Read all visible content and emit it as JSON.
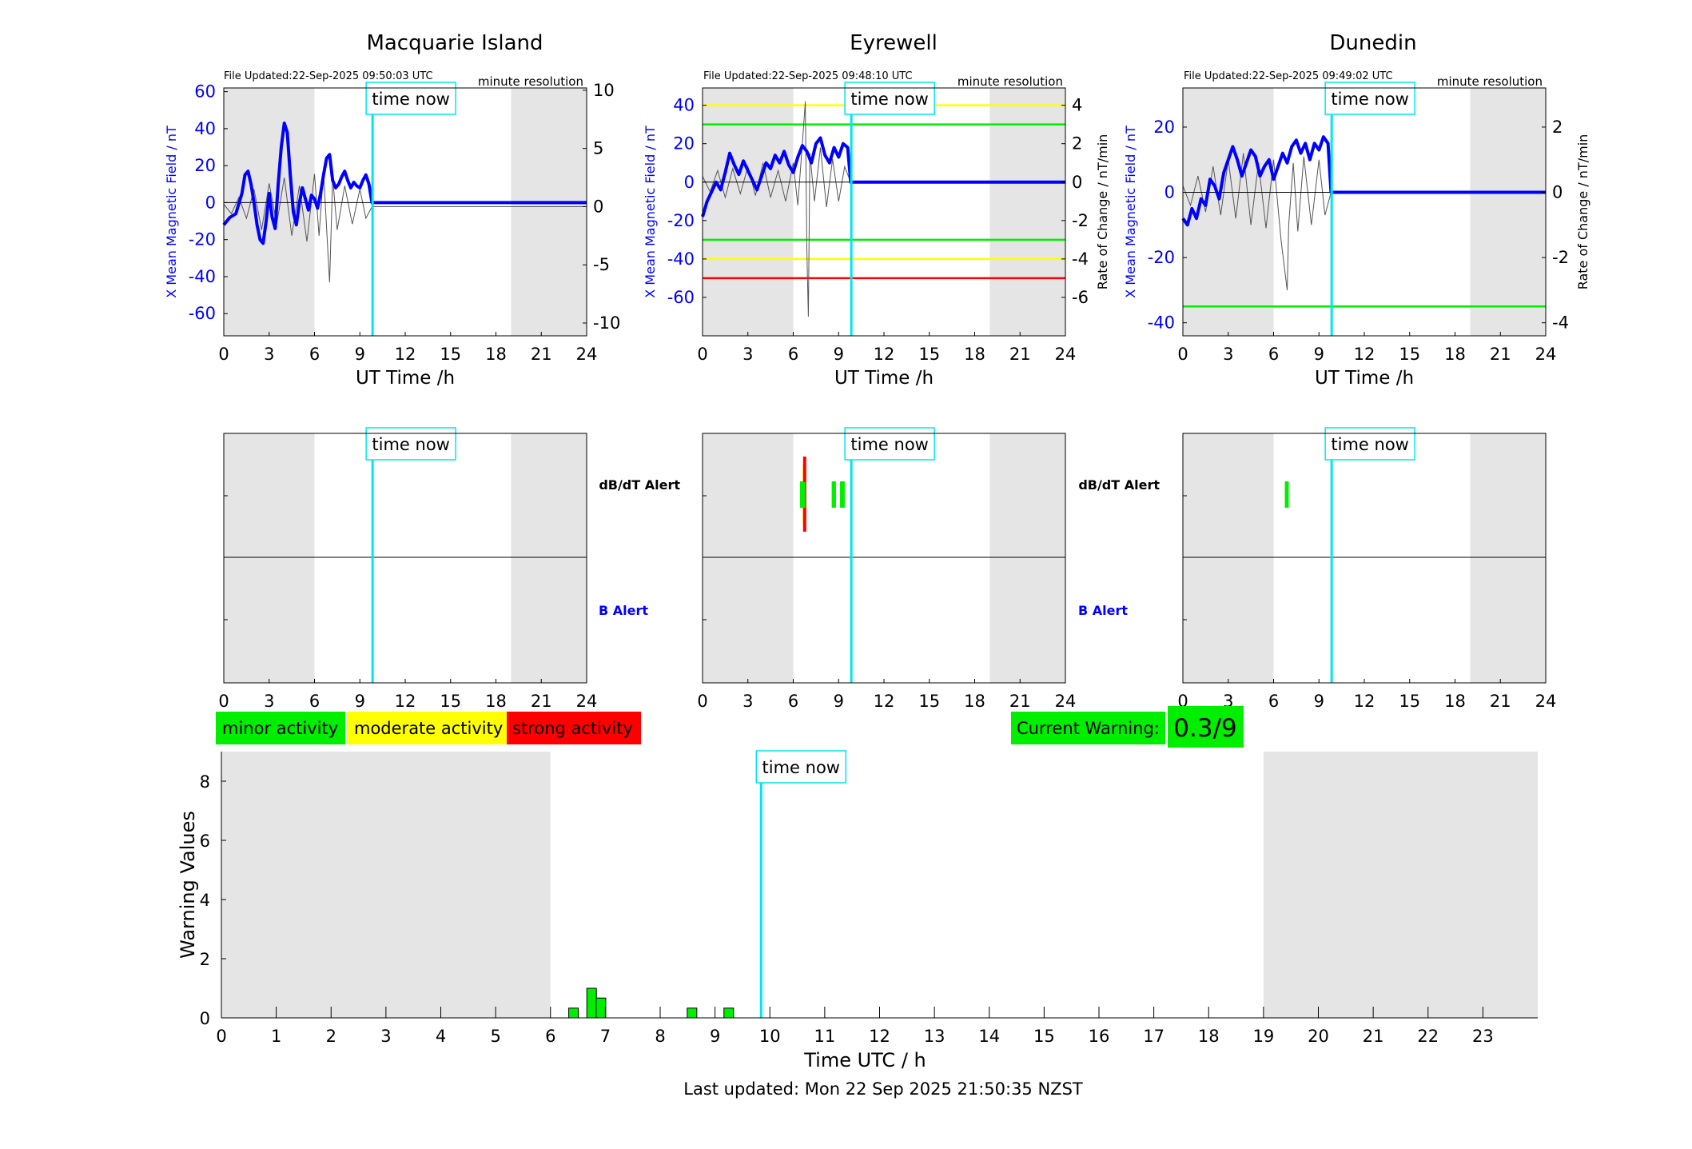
{
  "colors": {
    "field_line": "#0000ff",
    "rate_line": "#555555",
    "time_now": "#00e5ee",
    "night_shade": "#e5e5e5",
    "minor": "#00ee00",
    "moderate": "#ffff00",
    "strong": "#ff0000",
    "b_alert_label": "#0000ff"
  },
  "common": {
    "time_now_label": "time now",
    "time_now_hour": 9.84,
    "night_shade_hours": [
      [
        0,
        6
      ],
      [
        19,
        24
      ]
    ],
    "x_label_top": "UT Time /h",
    "x_ticks": [
      0,
      3,
      6,
      9,
      12,
      15,
      18,
      21,
      24
    ],
    "resolution_label": "minute resolution",
    "left_ylabel": "X Mean Magnetic Field / nT",
    "right_ylabel": "Rate of Change / nT/min",
    "alert_dbdt_label": "dB/dT Alert",
    "alert_b_label": "B Alert"
  },
  "stations": [
    {
      "name": "Macquarie Island",
      "file_updated": "File Updated:22-Sep-2025 09:50:03 UTC",
      "show_right_label": false,
      "left_ylim": [
        -72,
        62
      ],
      "left_ticks": [
        -60,
        -40,
        -20,
        0,
        20,
        40,
        60
      ],
      "right_ylim": [
        -11.1,
        10.2
      ],
      "right_ticks": [
        -10,
        -5,
        0,
        5,
        10
      ],
      "thresholds": [],
      "field_series": [
        [
          0,
          -12
        ],
        [
          0.4,
          -8
        ],
        [
          0.8,
          -6
        ],
        [
          1.2,
          5
        ],
        [
          1.4,
          15
        ],
        [
          1.6,
          17
        ],
        [
          1.8,
          10
        ],
        [
          2.0,
          0
        ],
        [
          2.2,
          -12
        ],
        [
          2.4,
          -20
        ],
        [
          2.6,
          -22
        ],
        [
          2.8,
          -10
        ],
        [
          3.0,
          5
        ],
        [
          3.2,
          -8
        ],
        [
          3.4,
          -14
        ],
        [
          3.6,
          10
        ],
        [
          3.8,
          30
        ],
        [
          4.0,
          43
        ],
        [
          4.2,
          38
        ],
        [
          4.4,
          15
        ],
        [
          4.6,
          -5
        ],
        [
          4.8,
          -12
        ],
        [
          5.0,
          0
        ],
        [
          5.2,
          8
        ],
        [
          5.4,
          2
        ],
        [
          5.6,
          -4
        ],
        [
          5.8,
          4
        ],
        [
          6.0,
          2
        ],
        [
          6.2,
          -3
        ],
        [
          6.4,
          5
        ],
        [
          6.6,
          15
        ],
        [
          6.8,
          24
        ],
        [
          7.0,
          26
        ],
        [
          7.2,
          12
        ],
        [
          7.4,
          8
        ],
        [
          7.6,
          10
        ],
        [
          7.8,
          14
        ],
        [
          8.0,
          17
        ],
        [
          8.2,
          12
        ],
        [
          8.4,
          8
        ],
        [
          8.6,
          11
        ],
        [
          8.8,
          9
        ],
        [
          9.0,
          8
        ],
        [
          9.2,
          12
        ],
        [
          9.4,
          15
        ],
        [
          9.6,
          10
        ],
        [
          9.8,
          0
        ],
        [
          24,
          0
        ]
      ],
      "rate_series": [
        [
          0,
          0.2
        ],
        [
          0.5,
          -0.6
        ],
        [
          1.0,
          0.8
        ],
        [
          1.5,
          -1.0
        ],
        [
          2.0,
          1.5
        ],
        [
          2.5,
          -2.0
        ],
        [
          3.0,
          2.0
        ],
        [
          3.5,
          -1.5
        ],
        [
          4.0,
          2.5
        ],
        [
          4.5,
          -2.5
        ],
        [
          5.0,
          1.8
        ],
        [
          5.5,
          -3.0
        ],
        [
          6.0,
          2.8
        ],
        [
          6.3,
          -2.5
        ],
        [
          6.6,
          3.0
        ],
        [
          6.9,
          -4.2
        ],
        [
          7.0,
          -6.5
        ],
        [
          7.2,
          2.5
        ],
        [
          7.5,
          -2.0
        ],
        [
          8.0,
          1.8
        ],
        [
          8.5,
          -1.5
        ],
        [
          9.0,
          1.5
        ],
        [
          9.4,
          -1.0
        ],
        [
          9.8,
          0
        ],
        [
          24,
          0
        ]
      ],
      "dbdt_alerts": []
    },
    {
      "name": "Eyrewell",
      "file_updated": "File Updated:22-Sep-2025 09:48:10 UTC",
      "show_right_label": true,
      "left_ylim": [
        -80,
        49
      ],
      "left_ticks": [
        -60,
        -40,
        -20,
        0,
        20,
        40
      ],
      "right_ylim": [
        -8.0,
        4.9
      ],
      "right_ticks": [
        -6,
        -4,
        -2,
        0,
        2,
        4
      ],
      "thresholds": [
        {
          "value": 4,
          "level": "moderate"
        },
        {
          "value": 3,
          "level": "minor"
        },
        {
          "value": -3,
          "level": "minor"
        },
        {
          "value": -4,
          "level": "moderate"
        },
        {
          "value": -5,
          "level": "strong"
        }
      ],
      "field_series": [
        [
          0,
          -18
        ],
        [
          0.3,
          -10
        ],
        [
          0.6,
          -5
        ],
        [
          0.9,
          0
        ],
        [
          1.2,
          -4
        ],
        [
          1.5,
          5
        ],
        [
          1.8,
          15
        ],
        [
          2.1,
          9
        ],
        [
          2.4,
          4
        ],
        [
          2.7,
          11
        ],
        [
          3.0,
          6
        ],
        [
          3.3,
          1
        ],
        [
          3.6,
          -4
        ],
        [
          3.9,
          3
        ],
        [
          4.2,
          10
        ],
        [
          4.5,
          7
        ],
        [
          4.8,
          14
        ],
        [
          5.1,
          10
        ],
        [
          5.4,
          16
        ],
        [
          5.7,
          9
        ],
        [
          6.0,
          5
        ],
        [
          6.3,
          13
        ],
        [
          6.6,
          19
        ],
        [
          6.9,
          16
        ],
        [
          7.2,
          10
        ],
        [
          7.5,
          20
        ],
        [
          7.8,
          23
        ],
        [
          8.1,
          14
        ],
        [
          8.4,
          10
        ],
        [
          8.7,
          18
        ],
        [
          9.0,
          13
        ],
        [
          9.3,
          20
        ],
        [
          9.6,
          18
        ],
        [
          9.8,
          0
        ],
        [
          24,
          0
        ]
      ],
      "rate_series": [
        [
          0,
          0.3
        ],
        [
          0.5,
          -0.5
        ],
        [
          1.0,
          0.6
        ],
        [
          1.5,
          -0.8
        ],
        [
          2.0,
          0.7
        ],
        [
          2.5,
          -0.6
        ],
        [
          3.0,
          0.8
        ],
        [
          3.5,
          -0.7
        ],
        [
          4.0,
          1.0
        ],
        [
          4.5,
          -0.8
        ],
        [
          5.0,
          0.6
        ],
        [
          5.5,
          -1.0
        ],
        [
          6.0,
          1.0
        ],
        [
          6.3,
          -1.2
        ],
        [
          6.6,
          2.0
        ],
        [
          6.8,
          4.2
        ],
        [
          6.9,
          -3.5
        ],
        [
          7.0,
          -7.0
        ],
        [
          7.1,
          1.5
        ],
        [
          7.4,
          -1.0
        ],
        [
          7.8,
          1.8
        ],
        [
          8.2,
          -1.3
        ],
        [
          8.6,
          1.2
        ],
        [
          9.0,
          -1.0
        ],
        [
          9.4,
          0.8
        ],
        [
          9.8,
          0
        ],
        [
          24,
          0
        ]
      ],
      "dbdt_alerts": [
        {
          "start": 6.45,
          "end": 6.8,
          "level": "minor"
        },
        {
          "start": 6.62,
          "end": 6.82,
          "level": "moderate"
        },
        {
          "start": 6.65,
          "end": 6.8,
          "level": "strong"
        },
        {
          "start": 8.55,
          "end": 8.82,
          "level": "minor"
        },
        {
          "start": 9.1,
          "end": 9.4,
          "level": "minor"
        }
      ]
    },
    {
      "name": "Dunedin",
      "file_updated": "File Updated:22-Sep-2025 09:49:02 UTC",
      "show_right_label": true,
      "left_ylim": [
        -44,
        32
      ],
      "left_ticks": [
        -40,
        -20,
        0,
        20
      ],
      "right_ylim": [
        -4.4,
        3.2
      ],
      "right_ticks": [
        -4,
        -2,
        0,
        2
      ],
      "thresholds": [
        {
          "value": -3.5,
          "level": "minor"
        }
      ],
      "field_series": [
        [
          0,
          -8
        ],
        [
          0.3,
          -10
        ],
        [
          0.6,
          -5
        ],
        [
          0.9,
          -8
        ],
        [
          1.2,
          -2
        ],
        [
          1.5,
          -4
        ],
        [
          1.8,
          4
        ],
        [
          2.1,
          2
        ],
        [
          2.4,
          -2
        ],
        [
          2.7,
          6
        ],
        [
          3.0,
          10
        ],
        [
          3.3,
          14
        ],
        [
          3.6,
          10
        ],
        [
          3.9,
          5
        ],
        [
          4.2,
          9
        ],
        [
          4.5,
          13
        ],
        [
          4.8,
          11
        ],
        [
          5.1,
          5
        ],
        [
          5.4,
          8
        ],
        [
          5.7,
          10
        ],
        [
          6.0,
          4
        ],
        [
          6.3,
          8
        ],
        [
          6.6,
          12
        ],
        [
          6.9,
          9
        ],
        [
          7.2,
          14
        ],
        [
          7.5,
          16
        ],
        [
          7.8,
          12
        ],
        [
          8.1,
          15
        ],
        [
          8.4,
          10
        ],
        [
          8.7,
          15
        ],
        [
          9.0,
          13
        ],
        [
          9.3,
          17
        ],
        [
          9.6,
          15
        ],
        [
          9.8,
          0
        ],
        [
          24,
          0
        ]
      ],
      "rate_series": [
        [
          0,
          0.2
        ],
        [
          0.5,
          -0.4
        ],
        [
          1.0,
          0.5
        ],
        [
          1.5,
          -0.6
        ],
        [
          2.0,
          0.8
        ],
        [
          2.5,
          -0.7
        ],
        [
          3.0,
          1.0
        ],
        [
          3.5,
          -0.8
        ],
        [
          4.0,
          1.2
        ],
        [
          4.5,
          -1.0
        ],
        [
          5.0,
          0.9
        ],
        [
          5.5,
          -1.1
        ],
        [
          6.0,
          1.0
        ],
        [
          6.5,
          -1.5
        ],
        [
          6.9,
          -3.0
        ],
        [
          7.0,
          -1.0
        ],
        [
          7.3,
          0.9
        ],
        [
          7.6,
          -1.2
        ],
        [
          8.0,
          1.1
        ],
        [
          8.5,
          -1.0
        ],
        [
          9.0,
          1.0
        ],
        [
          9.4,
          -0.7
        ],
        [
          9.8,
          0
        ],
        [
          24,
          0
        ]
      ],
      "dbdt_alerts": [
        {
          "start": 6.75,
          "end": 7.0,
          "level": "minor"
        }
      ]
    }
  ],
  "legend": {
    "minor": "minor activity",
    "moderate": "moderate activity",
    "strong": "strong activity"
  },
  "current_warning": {
    "label": "Current Warning:",
    "value": "0.3/9"
  },
  "chart_data": {
    "type": "bar",
    "xlabel": "Time UTC / h",
    "ylabel": "Warning Values",
    "xlim": [
      0,
      24
    ],
    "ylim": [
      0,
      9
    ],
    "x_ticks": [
      0,
      1,
      2,
      3,
      4,
      5,
      6,
      7,
      8,
      9,
      10,
      11,
      12,
      13,
      14,
      15,
      16,
      17,
      18,
      19,
      20,
      21,
      22,
      23
    ],
    "y_ticks": [
      0,
      2,
      4,
      6,
      8
    ],
    "night_shade_hours": [
      [
        0,
        6
      ],
      [
        19,
        24
      ]
    ],
    "time_now_hour": 9.84,
    "bars": [
      {
        "x": 6.42,
        "value": 0.33
      },
      {
        "x": 6.75,
        "value": 1.0
      },
      {
        "x": 6.92,
        "value": 0.67
      },
      {
        "x": 8.58,
        "value": 0.33
      },
      {
        "x": 9.25,
        "value": 0.33
      }
    ]
  },
  "footer": {
    "last_updated": "Last updated: Mon 22 Sep 2025 21:50:35 NZST"
  }
}
